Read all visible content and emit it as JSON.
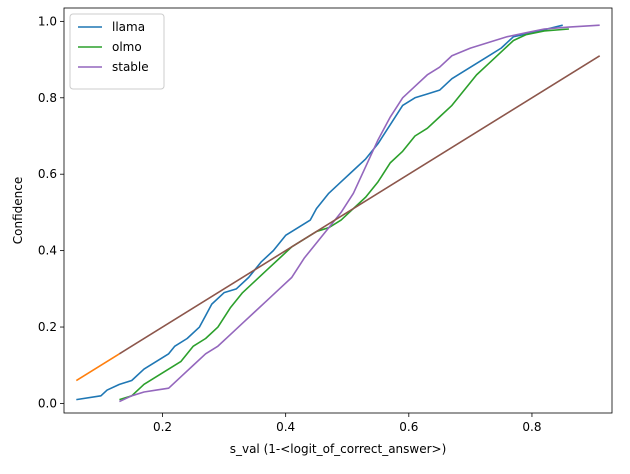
{
  "chart_data": {
    "type": "line",
    "xlabel": "s_val (1-<logit_of_correct_answer>)",
    "ylabel": "Confidence",
    "xlim": [
      0.04,
      0.93
    ],
    "ylim": [
      -0.025,
      1.035
    ],
    "xticks": [
      0.2,
      0.4,
      0.6,
      0.8
    ],
    "yticks": [
      0.0,
      0.2,
      0.4,
      0.6,
      0.8,
      1.0
    ],
    "xtick_labels": [
      "0.2",
      "0.4",
      "0.6",
      "0.8"
    ],
    "ytick_labels": [
      "0.0",
      "0.2",
      "0.4",
      "0.6",
      "0.8",
      "1.0"
    ],
    "grid": false,
    "legend_position": "top-left",
    "series": [
      {
        "name": "llama",
        "color": "#1f77b4",
        "in_legend": true,
        "points": [
          [
            0.06,
            0.01
          ],
          [
            0.1,
            0.02
          ],
          [
            0.11,
            0.035
          ],
          [
            0.13,
            0.05
          ],
          [
            0.15,
            0.06
          ],
          [
            0.17,
            0.09
          ],
          [
            0.19,
            0.11
          ],
          [
            0.21,
            0.13
          ],
          [
            0.22,
            0.15
          ],
          [
            0.24,
            0.17
          ],
          [
            0.26,
            0.2
          ],
          [
            0.27,
            0.23
          ],
          [
            0.28,
            0.26
          ],
          [
            0.3,
            0.29
          ],
          [
            0.32,
            0.3
          ],
          [
            0.34,
            0.33
          ],
          [
            0.36,
            0.37
          ],
          [
            0.38,
            0.4
          ],
          [
            0.4,
            0.44
          ],
          [
            0.42,
            0.46
          ],
          [
            0.44,
            0.48
          ],
          [
            0.45,
            0.51
          ],
          [
            0.47,
            0.55
          ],
          [
            0.49,
            0.58
          ],
          [
            0.51,
            0.61
          ],
          [
            0.53,
            0.64
          ],
          [
            0.55,
            0.68
          ],
          [
            0.57,
            0.73
          ],
          [
            0.59,
            0.78
          ],
          [
            0.61,
            0.8
          ],
          [
            0.63,
            0.81
          ],
          [
            0.65,
            0.82
          ],
          [
            0.67,
            0.85
          ],
          [
            0.69,
            0.87
          ],
          [
            0.71,
            0.89
          ],
          [
            0.73,
            0.91
          ],
          [
            0.75,
            0.93
          ],
          [
            0.77,
            0.96
          ],
          [
            0.8,
            0.97
          ],
          [
            0.85,
            0.99
          ]
        ]
      },
      {
        "name": "olmo",
        "color": "#2ca02c",
        "in_legend": true,
        "points": [
          [
            0.13,
            0.01
          ],
          [
            0.15,
            0.02
          ],
          [
            0.17,
            0.05
          ],
          [
            0.19,
            0.07
          ],
          [
            0.21,
            0.09
          ],
          [
            0.23,
            0.11
          ],
          [
            0.25,
            0.15
          ],
          [
            0.27,
            0.17
          ],
          [
            0.29,
            0.2
          ],
          [
            0.31,
            0.25
          ],
          [
            0.33,
            0.29
          ],
          [
            0.35,
            0.32
          ],
          [
            0.37,
            0.35
          ],
          [
            0.39,
            0.38
          ],
          [
            0.41,
            0.41
          ],
          [
            0.43,
            0.43
          ],
          [
            0.45,
            0.45
          ],
          [
            0.47,
            0.46
          ],
          [
            0.49,
            0.48
          ],
          [
            0.51,
            0.51
          ],
          [
            0.53,
            0.54
          ],
          [
            0.55,
            0.58
          ],
          [
            0.57,
            0.63
          ],
          [
            0.59,
            0.66
          ],
          [
            0.61,
            0.7
          ],
          [
            0.63,
            0.72
          ],
          [
            0.65,
            0.75
          ],
          [
            0.67,
            0.78
          ],
          [
            0.69,
            0.82
          ],
          [
            0.71,
            0.86
          ],
          [
            0.73,
            0.89
          ],
          [
            0.75,
            0.92
          ],
          [
            0.77,
            0.95
          ],
          [
            0.79,
            0.965
          ],
          [
            0.82,
            0.975
          ],
          [
            0.86,
            0.98
          ]
        ]
      },
      {
        "name": "stable",
        "color": "#9467bd",
        "in_legend": true,
        "points": [
          [
            0.13,
            0.005
          ],
          [
            0.15,
            0.02
          ],
          [
            0.17,
            0.03
          ],
          [
            0.19,
            0.035
          ],
          [
            0.21,
            0.04
          ],
          [
            0.23,
            0.07
          ],
          [
            0.25,
            0.1
          ],
          [
            0.27,
            0.13
          ],
          [
            0.29,
            0.15
          ],
          [
            0.31,
            0.18
          ],
          [
            0.33,
            0.21
          ],
          [
            0.35,
            0.24
          ],
          [
            0.37,
            0.27
          ],
          [
            0.39,
            0.3
          ],
          [
            0.41,
            0.33
          ],
          [
            0.43,
            0.38
          ],
          [
            0.45,
            0.42
          ],
          [
            0.47,
            0.46
          ],
          [
            0.49,
            0.5
          ],
          [
            0.51,
            0.55
          ],
          [
            0.53,
            0.62
          ],
          [
            0.55,
            0.69
          ],
          [
            0.57,
            0.75
          ],
          [
            0.59,
            0.8
          ],
          [
            0.61,
            0.83
          ],
          [
            0.63,
            0.86
          ],
          [
            0.65,
            0.88
          ],
          [
            0.67,
            0.91
          ],
          [
            0.7,
            0.93
          ],
          [
            0.73,
            0.945
          ],
          [
            0.76,
            0.96
          ],
          [
            0.79,
            0.97
          ],
          [
            0.82,
            0.98
          ],
          [
            0.86,
            0.985
          ],
          [
            0.91,
            0.99
          ]
        ]
      },
      {
        "name": "",
        "color": "#ff7f0e",
        "in_legend": false,
        "points": [
          [
            0.06,
            0.06
          ],
          [
            0.13,
            0.13
          ]
        ]
      },
      {
        "name": "",
        "color": "#8c564b",
        "in_legend": false,
        "points": [
          [
            0.13,
            0.13
          ],
          [
            0.91,
            0.91
          ]
        ]
      }
    ]
  }
}
